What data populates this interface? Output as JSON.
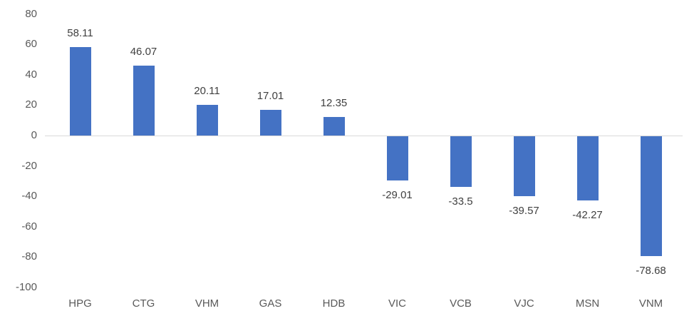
{
  "chart_data": {
    "type": "bar",
    "categories": [
      "HPG",
      "CTG",
      "VHM",
      "GAS",
      "HDB",
      "VIC",
      "VCB",
      "VJC",
      "MSN",
      "VNM"
    ],
    "values": [
      58.11,
      46.07,
      20.11,
      17.01,
      12.35,
      -29.01,
      -33.5,
      -39.57,
      -42.27,
      -78.68
    ],
    "data_labels": [
      "58.11",
      "46.07",
      "20.11",
      "17.01",
      "12.35",
      "-29.01",
      "-33.5",
      "-39.57",
      "-42.27",
      "-78.68"
    ],
    "title": "",
    "xlabel": "",
    "ylabel": "",
    "ylim": [
      -100,
      80
    ],
    "yticks": [
      80,
      60,
      40,
      20,
      0,
      -20,
      -40,
      -60,
      -80,
      -100
    ],
    "grid": false,
    "legend": "none",
    "colors": {
      "bar": "#4472C4",
      "axis_line": "#D9D9D9",
      "axis_labels": "#595959",
      "data_labels": "#404040"
    }
  }
}
